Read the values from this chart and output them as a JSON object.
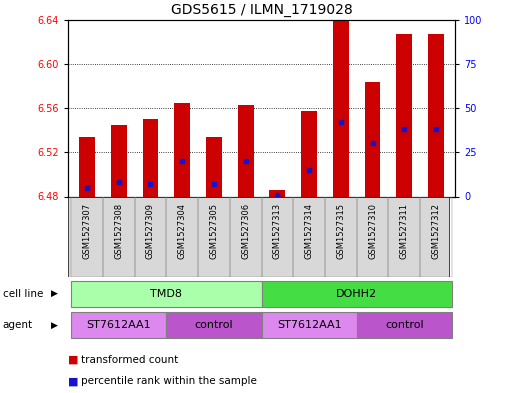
{
  "title": "GDS5615 / ILMN_1719028",
  "samples": [
    "GSM1527307",
    "GSM1527308",
    "GSM1527309",
    "GSM1527304",
    "GSM1527305",
    "GSM1527306",
    "GSM1527313",
    "GSM1527314",
    "GSM1527315",
    "GSM1527310",
    "GSM1527311",
    "GSM1527312"
  ],
  "bar_bottom": 6.48,
  "transformed_counts": [
    6.534,
    6.545,
    6.55,
    6.565,
    6.534,
    6.563,
    6.486,
    6.557,
    6.643,
    6.584,
    6.627,
    6.627
  ],
  "percentile_ranks": [
    5,
    8,
    7,
    20,
    7,
    20,
    1,
    15,
    42,
    30,
    38,
    38
  ],
  "ylim_left": [
    6.48,
    6.64
  ],
  "ylim_right": [
    0,
    100
  ],
  "yticks_left": [
    6.48,
    6.52,
    6.56,
    6.6,
    6.64
  ],
  "yticks_right": [
    0,
    25,
    50,
    75,
    100
  ],
  "bar_color": "#cc0000",
  "dot_color": "#1414cc",
  "bar_width": 0.5,
  "cell_line_groups": [
    {
      "label": "TMD8",
      "start": 0,
      "end": 6,
      "color": "#aaffaa"
    },
    {
      "label": "DOHH2",
      "start": 6,
      "end": 12,
      "color": "#44dd44"
    }
  ],
  "agent_groups": [
    {
      "label": "ST7612AA1",
      "start": 0,
      "end": 3,
      "color": "#ee88ee"
    },
    {
      "label": "control",
      "start": 3,
      "end": 6,
      "color": "#cc66cc"
    },
    {
      "label": "ST7612AA1",
      "start": 6,
      "end": 9,
      "color": "#ee88ee"
    },
    {
      "label": "control",
      "start": 9,
      "end": 12,
      "color": "#cc66cc"
    }
  ],
  "legend_red": "transformed count",
  "legend_blue": "percentile rank within the sample",
  "title_fontsize": 10,
  "tick_fontsize": 7,
  "sample_fontsize": 6,
  "group_label_fontsize": 8
}
